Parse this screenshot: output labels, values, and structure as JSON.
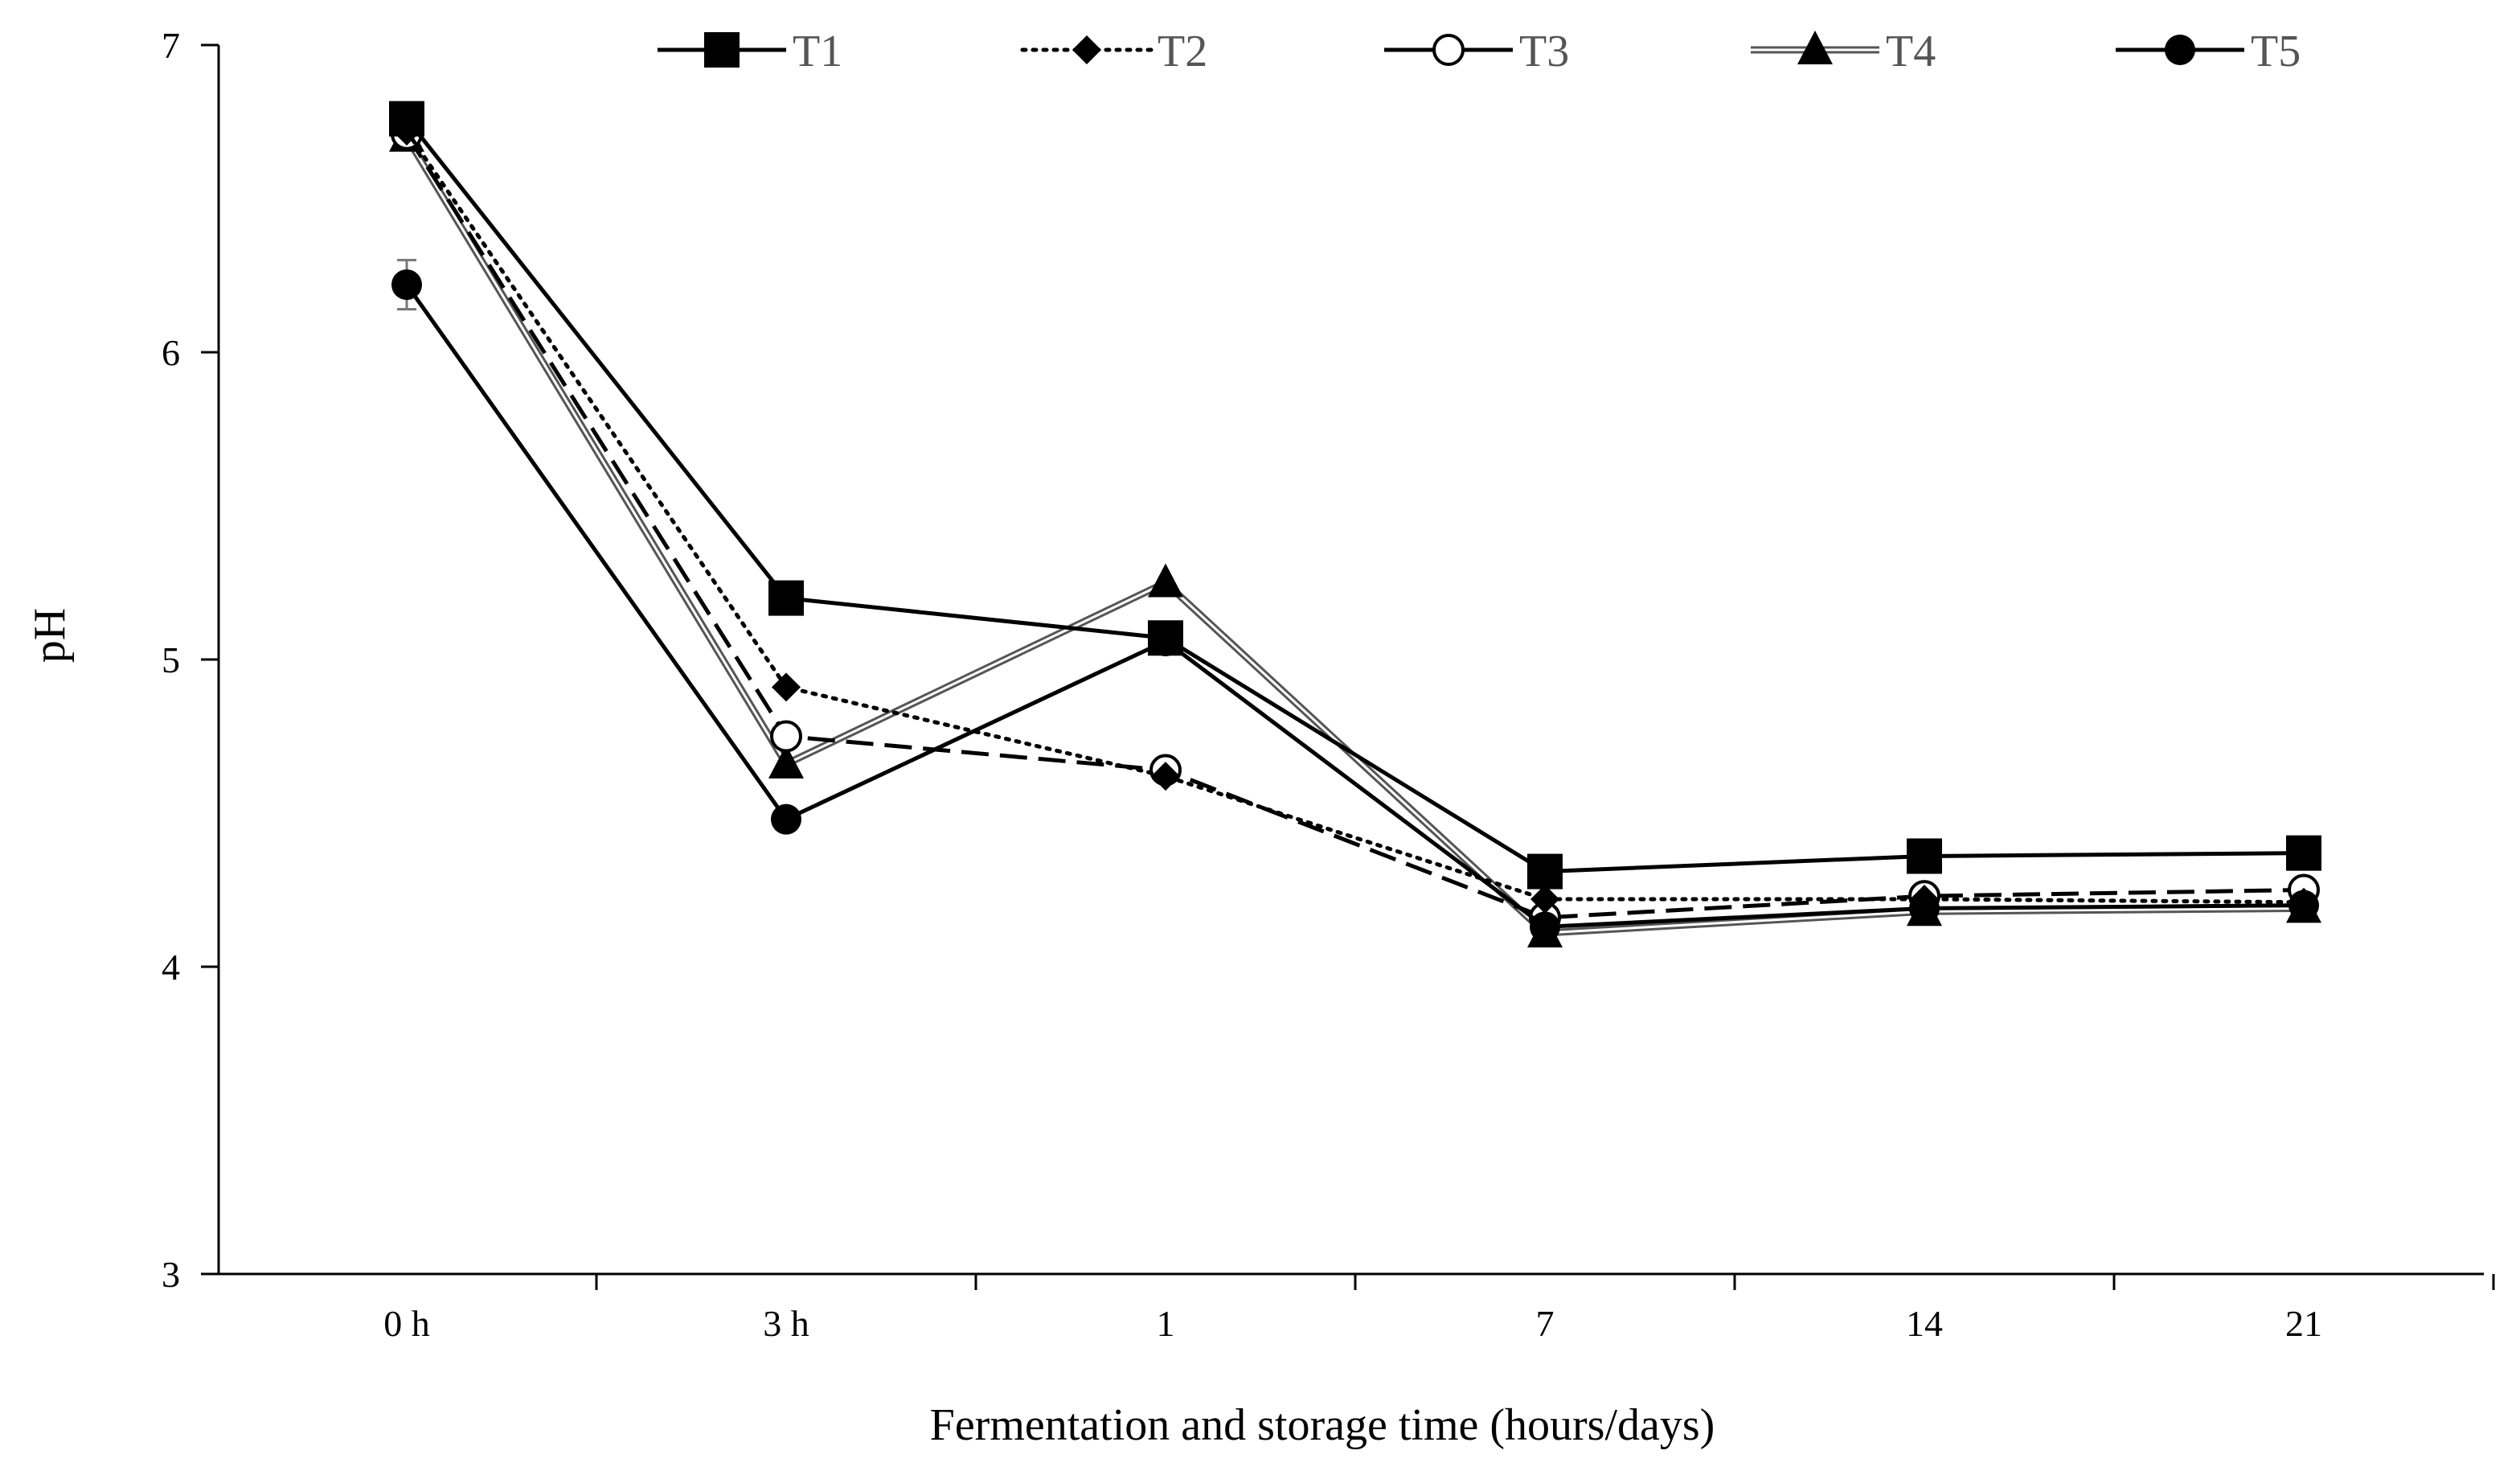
{
  "chart_data": {
    "type": "line",
    "title": "",
    "xlabel": "Fermentation and storage time (hours/days)",
    "ylabel": "pH",
    "ylim": [
      3,
      7
    ],
    "yticks": [
      3,
      4,
      5,
      6,
      7
    ],
    "grid": false,
    "legend_position": "top",
    "categories": [
      "0 h",
      "3 h",
      "1",
      "7",
      "14",
      "21"
    ],
    "series": [
      {
        "name": "T1",
        "values": [
          6.76,
          5.2,
          5.07,
          4.31,
          4.36,
          4.37
        ],
        "marker": "square",
        "line_style": "solid",
        "color": "#000000"
      },
      {
        "name": "T2",
        "values": [
          6.72,
          4.91,
          4.62,
          4.22,
          4.22,
          4.21
        ],
        "marker": "diamond",
        "line_style": "dotted",
        "color": "#000000"
      },
      {
        "name": "T3",
        "values": [
          6.71,
          4.75,
          4.64,
          4.16,
          4.23,
          4.25
        ],
        "marker": "circle-open",
        "line_style": "dashed",
        "color": "#000000"
      },
      {
        "name": "T4",
        "values": [
          6.7,
          4.66,
          5.25,
          4.11,
          4.18,
          4.19
        ],
        "marker": "triangle",
        "line_style": "double",
        "color": "#555555"
      },
      {
        "name": "T5",
        "values": [
          6.22,
          4.48,
          5.06,
          4.13,
          4.19,
          4.2
        ],
        "error": [
          0.08,
          0,
          0,
          0,
          0,
          0
        ],
        "marker": "circle-filled",
        "line_style": "solid",
        "color": "#000000"
      }
    ]
  }
}
